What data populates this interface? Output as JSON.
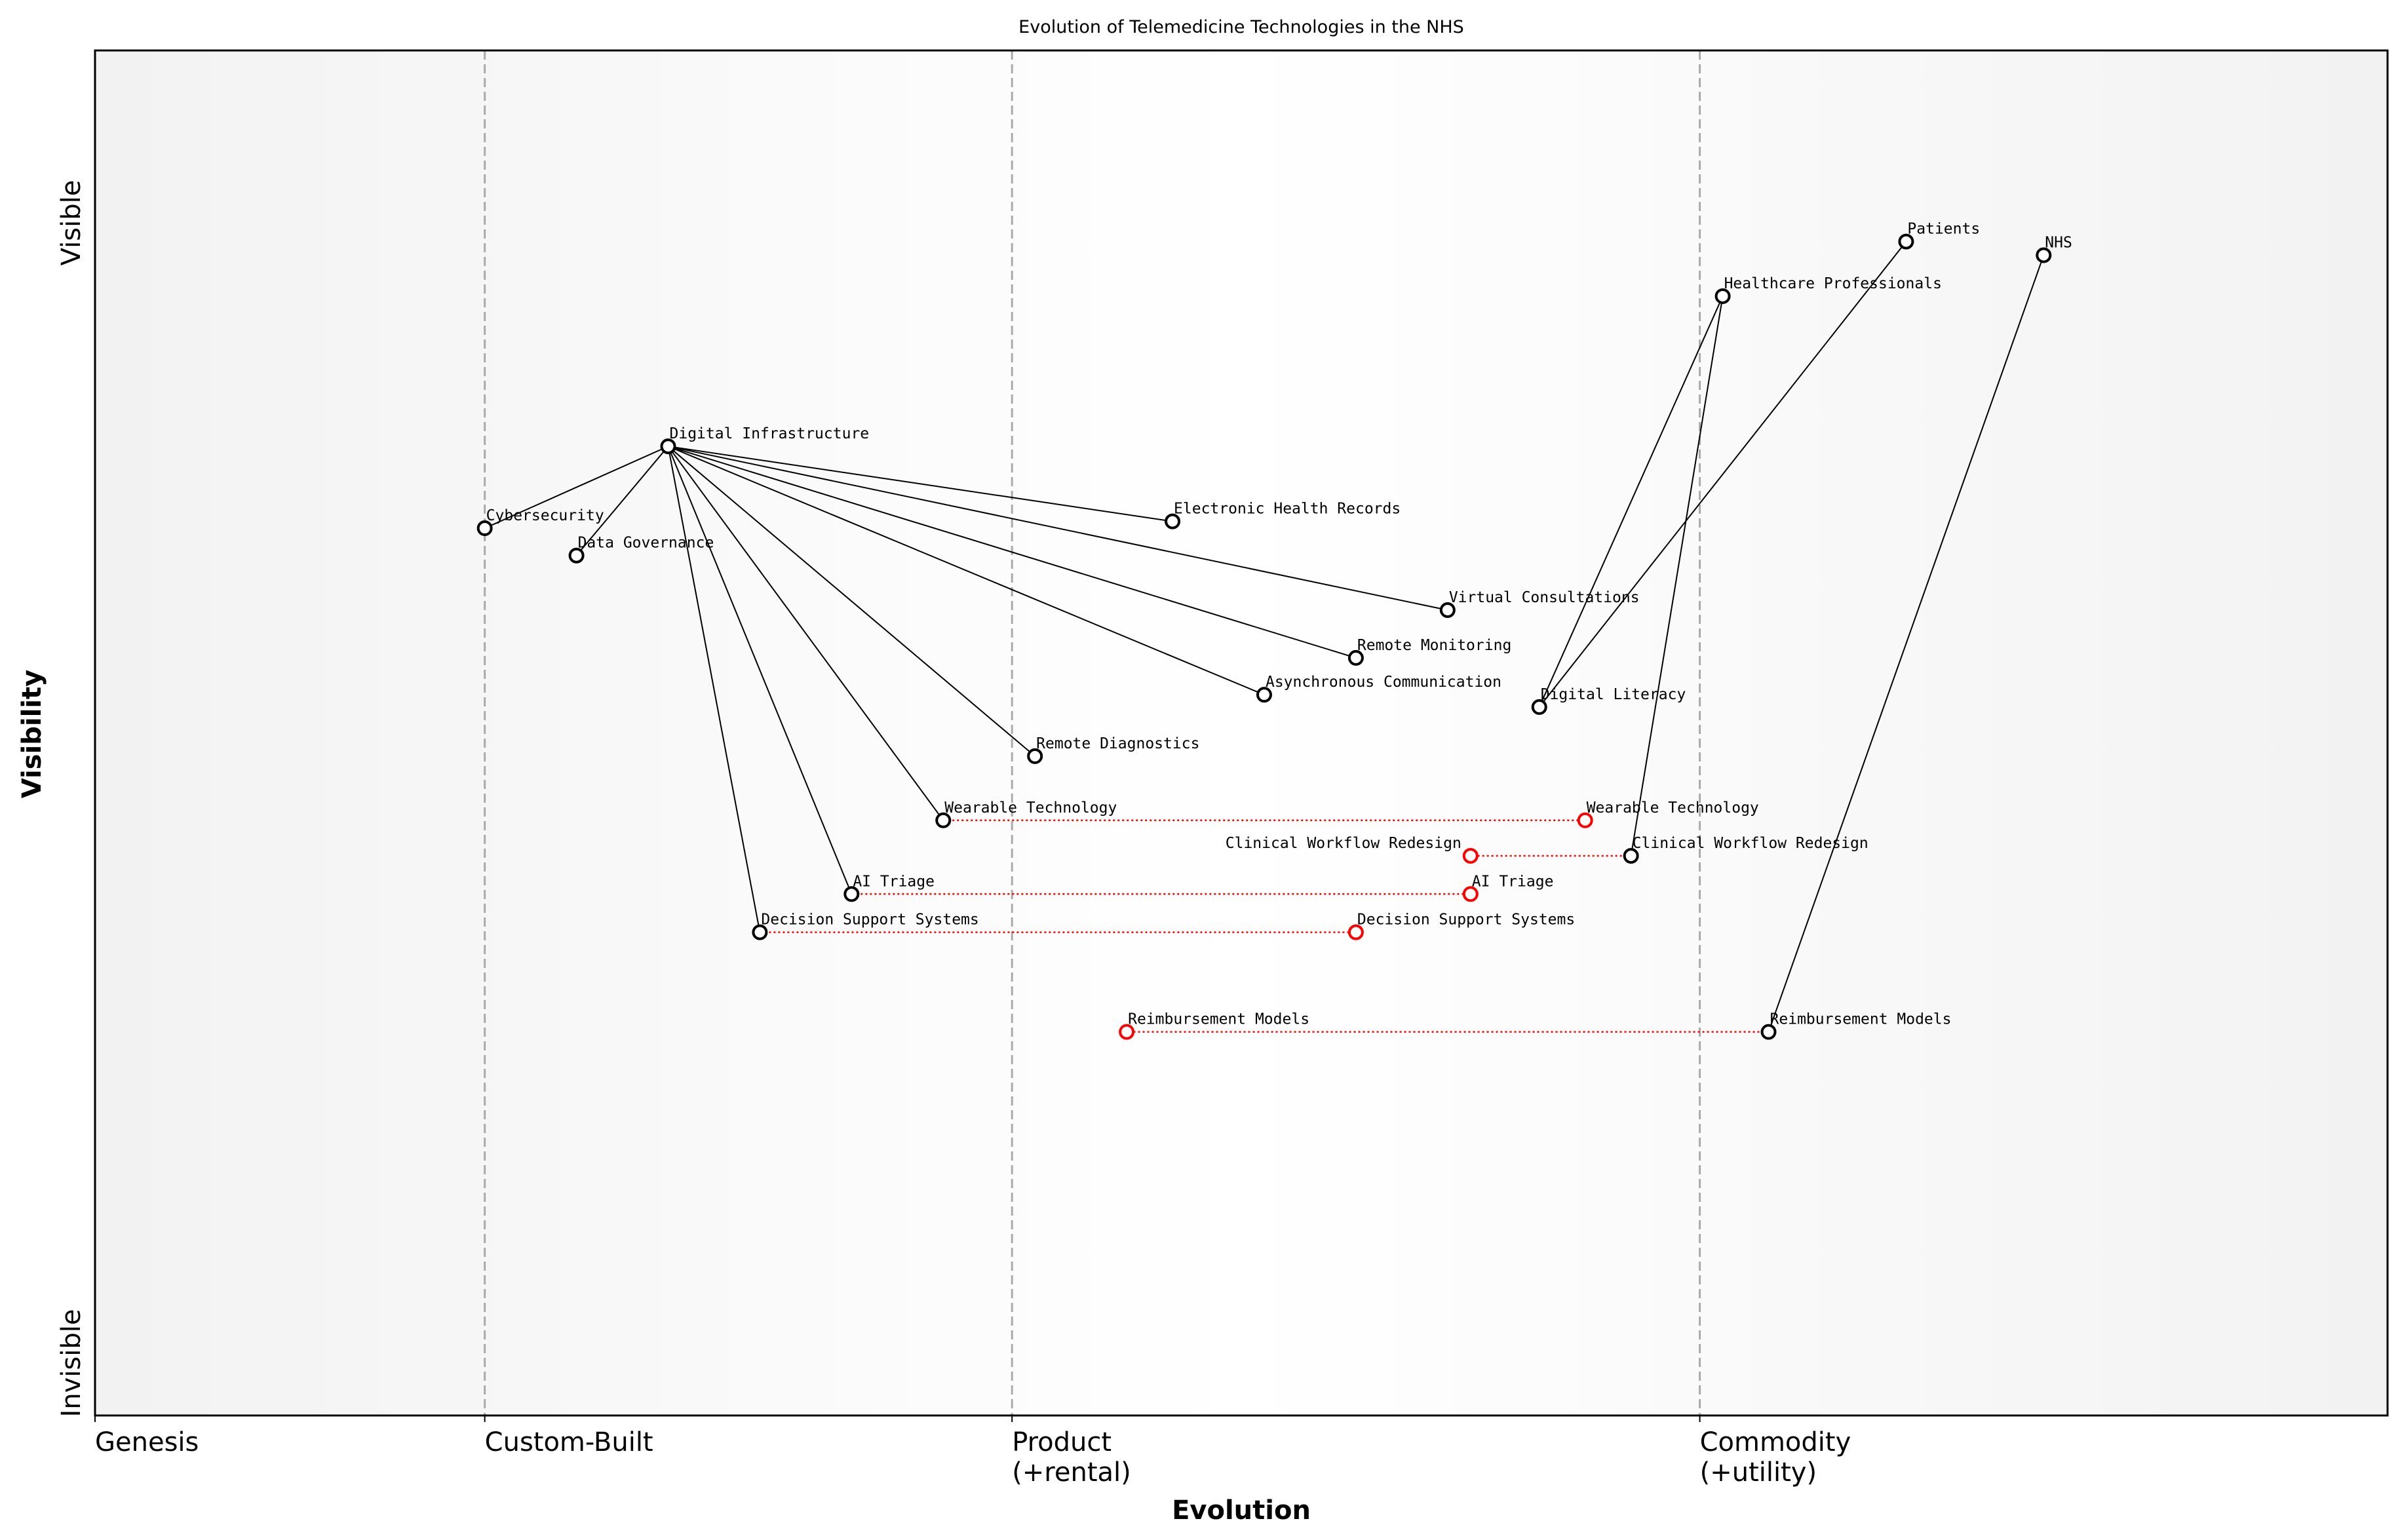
{
  "title": "Evolution of Telemedicine Technologies in the NHS",
  "x_axis": {
    "label": "Evolution",
    "stages": [
      {
        "label": "Genesis",
        "sub": "",
        "x": 0.0
      },
      {
        "label": "Custom-Built",
        "sub": "",
        "x": 0.17
      },
      {
        "label": "Product",
        "sub": "(+rental)",
        "x": 0.4
      },
      {
        "label": "Commodity",
        "sub": "(+utility)",
        "x": 0.7
      }
    ]
  },
  "y_axis": {
    "label": "Visibility",
    "top_label": "Visible",
    "bottom_label": "Invisible"
  },
  "colors": {
    "node": "#000000",
    "evolved": "#ff0000",
    "stage_line": "#aaaaaa",
    "edge_bg": "#f2f2f2"
  },
  "chart_data": {
    "type": "wardley-map",
    "xlim": [
      0,
      1
    ],
    "ylim": [
      0,
      1
    ],
    "nodes": [
      {
        "id": "patients",
        "name": "Patients",
        "x": 0.79,
        "y": 0.86
      },
      {
        "id": "nhs",
        "name": "NHS",
        "x": 0.85,
        "y": 0.85
      },
      {
        "id": "hcp",
        "name": "Healthcare Professionals",
        "x": 0.71,
        "y": 0.82
      },
      {
        "id": "di",
        "name": "Digital Infrastructure",
        "x": 0.25,
        "y": 0.71
      },
      {
        "id": "cyber",
        "name": "Cybersecurity",
        "x": 0.17,
        "y": 0.65
      },
      {
        "id": "dg",
        "name": "Data Governance",
        "x": 0.21,
        "y": 0.63
      },
      {
        "id": "ehr",
        "name": "Electronic Health Records",
        "x": 0.47,
        "y": 0.655
      },
      {
        "id": "vc",
        "name": "Virtual Consultations",
        "x": 0.59,
        "y": 0.59
      },
      {
        "id": "rm",
        "name": "Remote Monitoring",
        "x": 0.55,
        "y": 0.555
      },
      {
        "id": "ac",
        "name": "Asynchronous Communication",
        "x": 0.51,
        "y": 0.528
      },
      {
        "id": "dl",
        "name": "Digital Literacy",
        "x": 0.63,
        "y": 0.519
      },
      {
        "id": "rd",
        "name": "Remote Diagnostics",
        "x": 0.41,
        "y": 0.483
      },
      {
        "id": "wt",
        "name": "Wearable Technology",
        "x": 0.37,
        "y": 0.436
      },
      {
        "id": "cw",
        "name": "Clinical Workflow Redesign",
        "x": 0.67,
        "y": 0.41
      },
      {
        "id": "ai",
        "name": "AI Triage",
        "x": 0.33,
        "y": 0.382
      },
      {
        "id": "dss",
        "name": "Decision Support Systems",
        "x": 0.29,
        "y": 0.354
      },
      {
        "id": "reimb",
        "name": "Reimbursement Models",
        "x": 0.73,
        "y": 0.281
      }
    ],
    "evolved": [
      {
        "id": "wt",
        "name": "Wearable Technology",
        "x": 0.65,
        "y": 0.436
      },
      {
        "id": "cw",
        "name": "Clinical Workflow Redesign",
        "x": 0.6,
        "y": 0.41
      },
      {
        "id": "ai",
        "name": "AI Triage",
        "x": 0.6,
        "y": 0.382
      },
      {
        "id": "dss",
        "name": "Decision Support Systems",
        "x": 0.55,
        "y": 0.354
      },
      {
        "id": "reimb",
        "name": "Reimbursement Models",
        "x": 0.45,
        "y": 0.281
      }
    ],
    "links": [
      [
        "di",
        "cyber"
      ],
      [
        "di",
        "dg"
      ],
      [
        "di",
        "ehr"
      ],
      [
        "di",
        "vc"
      ],
      [
        "di",
        "rm"
      ],
      [
        "di",
        "ac"
      ],
      [
        "di",
        "rd"
      ],
      [
        "di",
        "wt"
      ],
      [
        "di",
        "ai"
      ],
      [
        "di",
        "dss"
      ],
      [
        "hcp",
        "dl"
      ],
      [
        "patients",
        "dl"
      ],
      [
        "hcp",
        "cw"
      ],
      [
        "nhs",
        "reimb"
      ]
    ]
  }
}
